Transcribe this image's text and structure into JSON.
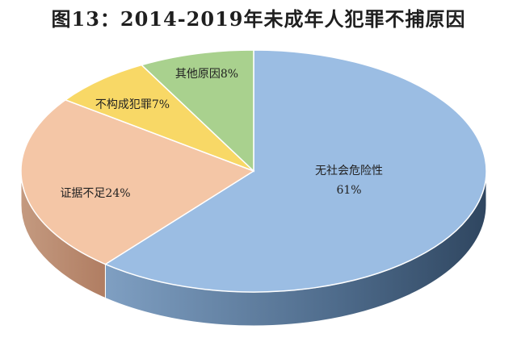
{
  "chart_data": {
    "type": "pie",
    "title": "图13：2014-2019年未成年人犯罪不捕原因",
    "style": "3d",
    "legend": "none",
    "slices": [
      {
        "label": "无社会危险性",
        "value_label": "61%",
        "value": 61,
        "color": "#9bbde3",
        "side_color": "#4d6a8c"
      },
      {
        "label": "证据不足24%",
        "value": 24,
        "color": "#f4c6a6",
        "side_color": "#c08c70"
      },
      {
        "label": "不构成犯罪7%",
        "value": 7,
        "color": "#f8d866",
        "side_color": "#b8982a"
      },
      {
        "label": "其他原因8%",
        "value": 8,
        "color": "#a9d18e",
        "side_color": "#6f9a55"
      }
    ]
  }
}
